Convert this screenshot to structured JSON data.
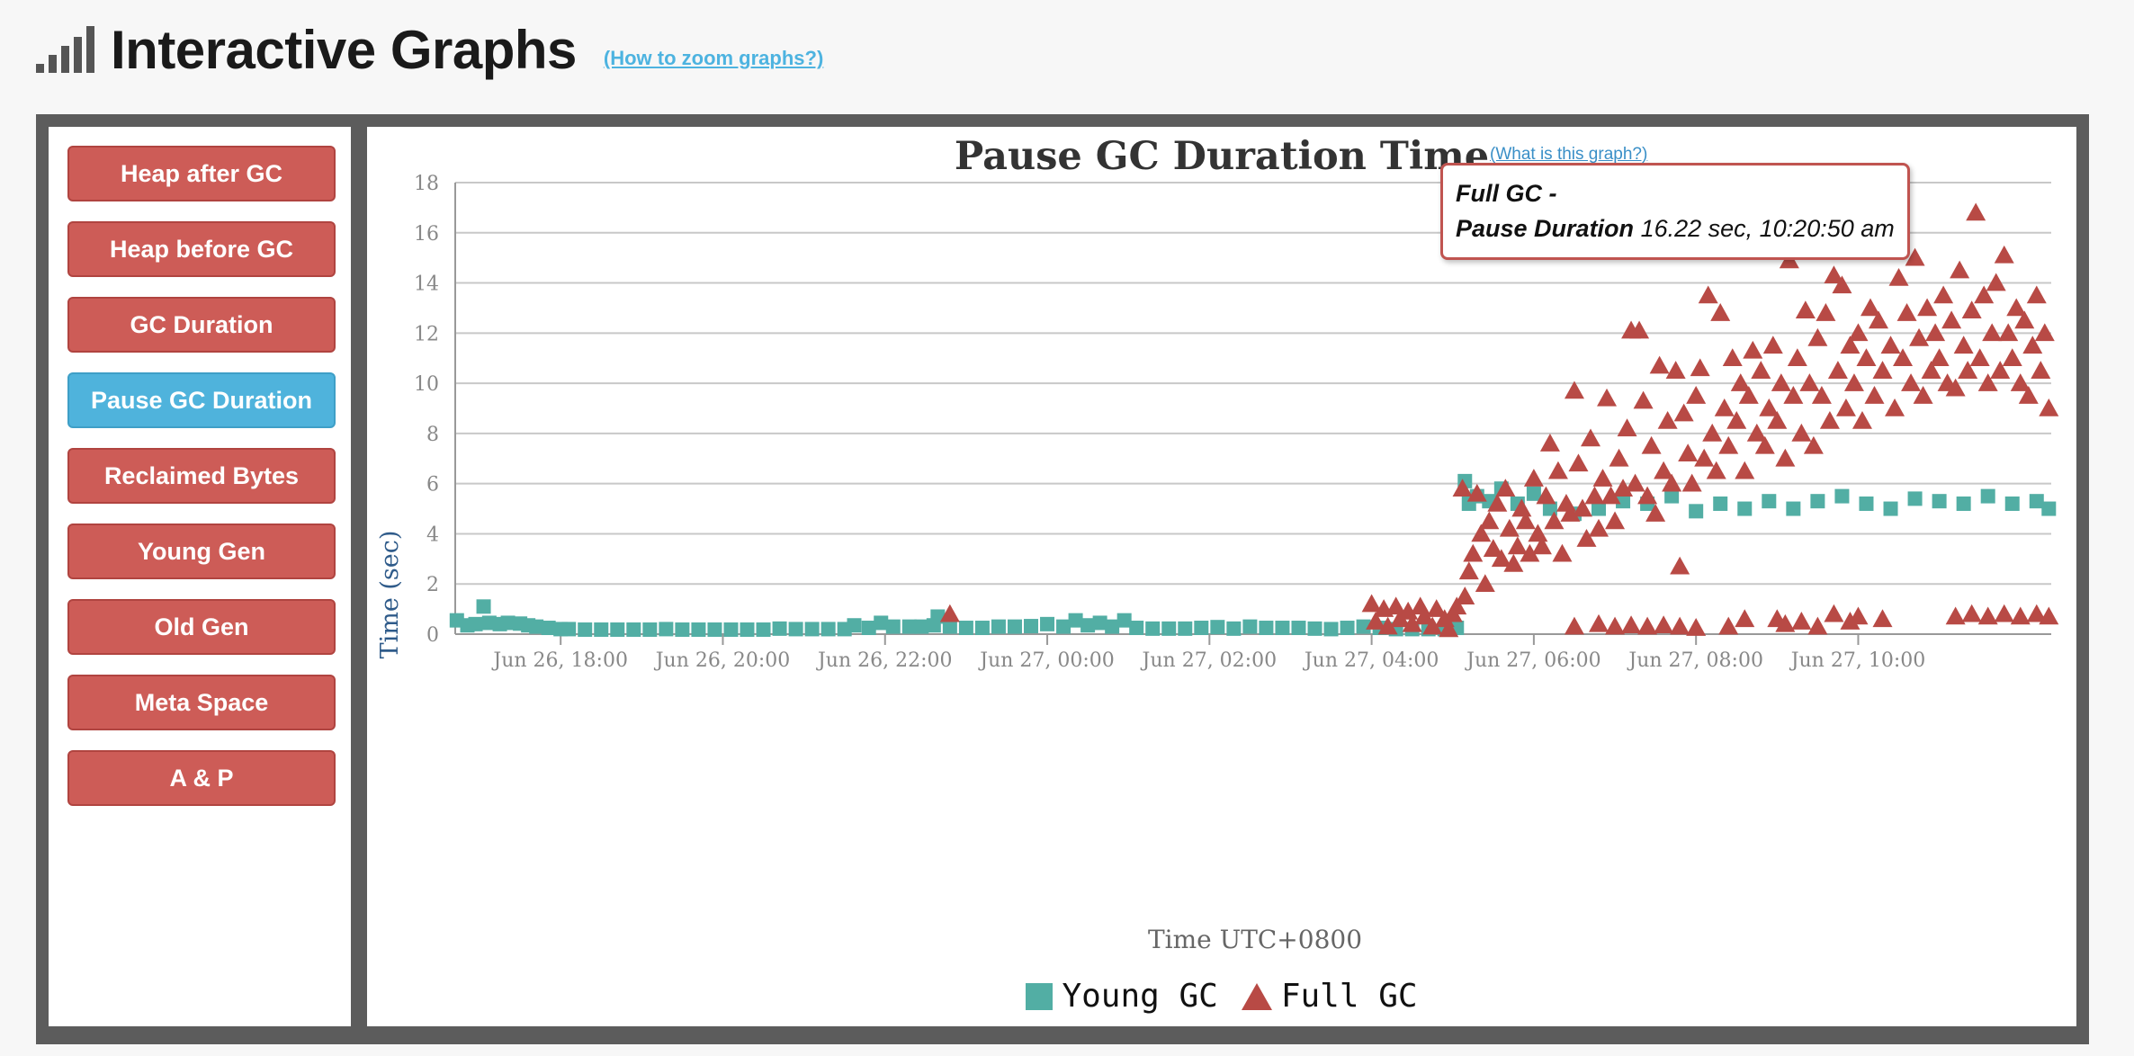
{
  "header": {
    "title": "Interactive Graphs",
    "zoom_link": "(How to zoom graphs?)"
  },
  "nav": [
    {
      "label": "Heap after GC",
      "active": false
    },
    {
      "label": "Heap before GC",
      "active": false
    },
    {
      "label": "GC Duration",
      "active": false
    },
    {
      "label": "Pause GC Duration",
      "active": true
    },
    {
      "label": "Reclaimed Bytes",
      "active": false
    },
    {
      "label": "Young Gen",
      "active": false
    },
    {
      "label": "Old Gen",
      "active": false
    },
    {
      "label": "Meta Space",
      "active": false
    },
    {
      "label": "A & P",
      "active": false
    }
  ],
  "colors": {
    "young": "#52aea4",
    "full": "#b84a45",
    "active_nav": "#4fb3dc",
    "nav": "#cd5c57"
  },
  "tooltip": {
    "title": "Full GC -",
    "label": "Pause Duration",
    "value": "16.22 sec, 10:20:50 am"
  },
  "chart_data": {
    "type": "scatter",
    "title": "Pause GC Duration Time",
    "help_link": "(What is this graph?)",
    "xlabel": "Time UTC+0800",
    "ylabel": "Time (sec)",
    "xlim": [
      16.7,
      12.38
    ],
    "xlim_hours": [
      16.7,
      36.38
    ],
    "ylim": [
      0,
      18
    ],
    "yticks": [
      0,
      2,
      4,
      6,
      8,
      10,
      12,
      14,
      16,
      18
    ],
    "xticks": [
      {
        "hour": 18,
        "label": "Jun 26, 18:00"
      },
      {
        "hour": 20,
        "label": "Jun 26, 20:00"
      },
      {
        "hour": 22,
        "label": "Jun 26, 22:00"
      },
      {
        "hour": 24,
        "label": "Jun 27, 00:00"
      },
      {
        "hour": 26,
        "label": "Jun 27, 02:00"
      },
      {
        "hour": 28,
        "label": "Jun 27, 04:00"
      },
      {
        "hour": 30,
        "label": "Jun 27, 06:00"
      },
      {
        "hour": 32,
        "label": "Jun 27, 08:00"
      },
      {
        "hour": 34,
        "label": "Jun 27, 10:00"
      }
    ],
    "grid": true,
    "legend_position": "bottom",
    "series": [
      {
        "name": "Young GC",
        "marker": "square",
        "points": [
          [
            16.72,
            0.55
          ],
          [
            16.85,
            0.35
          ],
          [
            16.95,
            0.4
          ],
          [
            17.05,
            1.1
          ],
          [
            17.12,
            0.45
          ],
          [
            17.25,
            0.4
          ],
          [
            17.35,
            0.45
          ],
          [
            17.5,
            0.42
          ],
          [
            17.6,
            0.35
          ],
          [
            17.7,
            0.3
          ],
          [
            17.85,
            0.25
          ],
          [
            18.0,
            0.2
          ],
          [
            18.1,
            0.2
          ],
          [
            18.3,
            0.18
          ],
          [
            18.5,
            0.18
          ],
          [
            18.7,
            0.18
          ],
          [
            18.9,
            0.18
          ],
          [
            19.1,
            0.18
          ],
          [
            19.3,
            0.2
          ],
          [
            19.5,
            0.18
          ],
          [
            19.7,
            0.18
          ],
          [
            19.9,
            0.18
          ],
          [
            20.1,
            0.18
          ],
          [
            20.3,
            0.18
          ],
          [
            20.5,
            0.18
          ],
          [
            20.7,
            0.22
          ],
          [
            20.9,
            0.2
          ],
          [
            21.1,
            0.2
          ],
          [
            21.3,
            0.2
          ],
          [
            21.5,
            0.2
          ],
          [
            21.62,
            0.35
          ],
          [
            21.8,
            0.25
          ],
          [
            21.95,
            0.45
          ],
          [
            22.1,
            0.3
          ],
          [
            22.3,
            0.3
          ],
          [
            22.45,
            0.3
          ],
          [
            22.6,
            0.35
          ],
          [
            22.65,
            0.7
          ],
          [
            22.8,
            0.3
          ],
          [
            23.0,
            0.25
          ],
          [
            23.2,
            0.25
          ],
          [
            23.4,
            0.3
          ],
          [
            23.6,
            0.3
          ],
          [
            23.8,
            0.32
          ],
          [
            24.0,
            0.4
          ],
          [
            24.2,
            0.3
          ],
          [
            24.35,
            0.55
          ],
          [
            24.5,
            0.35
          ],
          [
            24.65,
            0.45
          ],
          [
            24.8,
            0.3
          ],
          [
            24.95,
            0.55
          ],
          [
            25.1,
            0.25
          ],
          [
            25.3,
            0.22
          ],
          [
            25.5,
            0.22
          ],
          [
            25.7,
            0.22
          ],
          [
            25.9,
            0.25
          ],
          [
            26.1,
            0.28
          ],
          [
            26.3,
            0.22
          ],
          [
            26.5,
            0.3
          ],
          [
            26.7,
            0.25
          ],
          [
            26.9,
            0.25
          ],
          [
            27.1,
            0.25
          ],
          [
            27.3,
            0.22
          ],
          [
            27.5,
            0.2
          ],
          [
            27.7,
            0.25
          ],
          [
            27.9,
            0.3
          ],
          [
            28.1,
            0.25
          ],
          [
            28.3,
            0.2
          ],
          [
            28.5,
            0.2
          ],
          [
            28.7,
            0.2
          ],
          [
            28.9,
            0.2
          ],
          [
            29.05,
            0.25
          ],
          [
            29.15,
            6.1
          ],
          [
            29.2,
            5.2
          ],
          [
            29.3,
            5.5
          ],
          [
            29.45,
            5.3
          ],
          [
            29.6,
            5.8
          ],
          [
            29.8,
            5.2
          ],
          [
            30.0,
            5.6
          ],
          [
            30.2,
            5.0
          ],
          [
            30.5,
            4.8
          ],
          [
            30.8,
            5.0
          ],
          [
            31.1,
            5.3
          ],
          [
            31.4,
            5.2
          ],
          [
            31.7,
            5.5
          ],
          [
            32.0,
            4.9
          ],
          [
            32.3,
            5.2
          ],
          [
            32.6,
            5.0
          ],
          [
            32.9,
            5.3
          ],
          [
            33.2,
            5.0
          ],
          [
            33.5,
            5.3
          ],
          [
            33.8,
            5.5
          ],
          [
            34.1,
            5.2
          ],
          [
            34.4,
            5.0
          ],
          [
            34.7,
            5.4
          ],
          [
            35.0,
            5.3
          ],
          [
            35.3,
            5.2
          ],
          [
            35.6,
            5.5
          ],
          [
            35.9,
            5.2
          ],
          [
            36.2,
            5.3
          ],
          [
            36.35,
            5.0
          ]
        ]
      },
      {
        "name": "Full GC",
        "marker": "triangle",
        "points": [
          [
            22.8,
            0.8
          ],
          [
            28.0,
            1.2
          ],
          [
            28.05,
            0.5
          ],
          [
            28.15,
            1.0
          ],
          [
            28.2,
            0.3
          ],
          [
            28.3,
            1.1
          ],
          [
            28.35,
            0.6
          ],
          [
            28.45,
            0.9
          ],
          [
            28.5,
            0.4
          ],
          [
            28.6,
            1.1
          ],
          [
            28.65,
            0.7
          ],
          [
            28.75,
            0.3
          ],
          [
            28.8,
            1.0
          ],
          [
            28.9,
            0.6
          ],
          [
            28.95,
            0.2
          ],
          [
            29.0,
            0.8
          ],
          [
            29.05,
            1.1
          ],
          [
            29.12,
            5.8
          ],
          [
            29.15,
            1.5
          ],
          [
            29.2,
            2.5
          ],
          [
            29.25,
            3.2
          ],
          [
            29.3,
            5.6
          ],
          [
            29.35,
            4.0
          ],
          [
            29.4,
            2.0
          ],
          [
            29.45,
            4.5
          ],
          [
            29.5,
            3.4
          ],
          [
            29.55,
            5.2
          ],
          [
            29.6,
            3.0
          ],
          [
            29.65,
            5.8
          ],
          [
            29.7,
            4.2
          ],
          [
            29.75,
            2.8
          ],
          [
            29.8,
            3.5
          ],
          [
            29.85,
            5.0
          ],
          [
            29.9,
            4.5
          ],
          [
            29.95,
            3.2
          ],
          [
            30.0,
            6.2
          ],
          [
            30.05,
            4.0
          ],
          [
            30.1,
            3.5
          ],
          [
            30.15,
            5.5
          ],
          [
            30.2,
            7.6
          ],
          [
            30.25,
            4.5
          ],
          [
            30.3,
            6.5
          ],
          [
            30.35,
            3.2
          ],
          [
            30.4,
            5.2
          ],
          [
            30.45,
            4.8
          ],
          [
            30.5,
            9.7
          ],
          [
            30.55,
            6.8
          ],
          [
            30.6,
            5.0
          ],
          [
            30.65,
            3.8
          ],
          [
            30.7,
            7.8
          ],
          [
            30.75,
            5.5
          ],
          [
            30.8,
            4.2
          ],
          [
            30.85,
            6.2
          ],
          [
            30.9,
            9.4
          ],
          [
            30.95,
            5.5
          ],
          [
            31.0,
            4.5
          ],
          [
            31.05,
            7.0
          ],
          [
            31.1,
            5.8
          ],
          [
            31.15,
            8.2
          ],
          [
            31.2,
            12.1
          ],
          [
            31.3,
            12.1
          ],
          [
            31.25,
            6.0
          ],
          [
            31.35,
            9.3
          ],
          [
            31.4,
            5.5
          ],
          [
            31.45,
            7.5
          ],
          [
            31.5,
            4.8
          ],
          [
            31.55,
            10.7
          ],
          [
            31.6,
            6.5
          ],
          [
            31.65,
            8.5
          ],
          [
            31.7,
            6.0
          ],
          [
            31.75,
            10.5
          ],
          [
            31.8,
            2.7
          ],
          [
            31.85,
            8.8
          ],
          [
            31.9,
            7.2
          ],
          [
            31.95,
            6.0
          ],
          [
            32.0,
            9.5
          ],
          [
            32.05,
            10.6
          ],
          [
            32.1,
            7.0
          ],
          [
            32.15,
            13.5
          ],
          [
            32.2,
            8.0
          ],
          [
            32.25,
            6.5
          ],
          [
            32.3,
            12.8
          ],
          [
            32.35,
            9.0
          ],
          [
            32.4,
            7.5
          ],
          [
            32.45,
            11.0
          ],
          [
            32.5,
            8.5
          ],
          [
            32.55,
            10.0
          ],
          [
            32.6,
            6.5
          ],
          [
            32.65,
            9.5
          ],
          [
            32.7,
            11.3
          ],
          [
            32.75,
            8.0
          ],
          [
            32.8,
            10.5
          ],
          [
            32.85,
            7.5
          ],
          [
            32.9,
            9.0
          ],
          [
            32.95,
            11.5
          ],
          [
            33.0,
            8.5
          ],
          [
            33.05,
            10.0
          ],
          [
            33.1,
            7.0
          ],
          [
            33.15,
            14.9
          ],
          [
            33.2,
            9.5
          ],
          [
            33.25,
            11.0
          ],
          [
            33.3,
            8.0
          ],
          [
            33.35,
            12.9
          ],
          [
            33.4,
            10.0
          ],
          [
            33.45,
            7.5
          ],
          [
            33.5,
            11.8
          ],
          [
            33.55,
            9.5
          ],
          [
            33.6,
            12.8
          ],
          [
            33.65,
            8.5
          ],
          [
            33.7,
            14.3
          ],
          [
            33.75,
            10.5
          ],
          [
            33.8,
            13.9
          ],
          [
            33.85,
            9.0
          ],
          [
            33.9,
            11.5
          ],
          [
            33.95,
            10.0
          ],
          [
            34.0,
            12.0
          ],
          [
            34.05,
            8.5
          ],
          [
            34.1,
            11.0
          ],
          [
            34.15,
            13.0
          ],
          [
            34.2,
            9.5
          ],
          [
            34.25,
            12.5
          ],
          [
            34.3,
            10.5
          ],
          [
            34.35,
            16.22
          ],
          [
            34.4,
            11.5
          ],
          [
            34.45,
            9.0
          ],
          [
            34.5,
            14.2
          ],
          [
            34.55,
            11.0
          ],
          [
            34.6,
            12.8
          ],
          [
            34.65,
            10.0
          ],
          [
            34.7,
            15.0
          ],
          [
            34.75,
            11.8
          ],
          [
            34.8,
            9.5
          ],
          [
            34.85,
            13.0
          ],
          [
            34.9,
            10.5
          ],
          [
            34.95,
            12.0
          ],
          [
            35.0,
            11.0
          ],
          [
            35.05,
            13.5
          ],
          [
            35.1,
            10.0
          ],
          [
            35.15,
            12.5
          ],
          [
            35.2,
            9.8
          ],
          [
            35.25,
            14.5
          ],
          [
            35.3,
            11.5
          ],
          [
            35.35,
            10.5
          ],
          [
            35.4,
            12.9
          ],
          [
            35.45,
            16.8
          ],
          [
            35.5,
            11.0
          ],
          [
            35.55,
            13.5
          ],
          [
            35.6,
            10.0
          ],
          [
            35.65,
            12.0
          ],
          [
            35.7,
            14.0
          ],
          [
            35.75,
            10.5
          ],
          [
            35.8,
            15.1
          ],
          [
            35.85,
            12.0
          ],
          [
            35.9,
            11.0
          ],
          [
            35.95,
            13.0
          ],
          [
            36.0,
            10.0
          ],
          [
            36.05,
            12.5
          ],
          [
            36.1,
            9.5
          ],
          [
            36.15,
            11.5
          ],
          [
            36.2,
            13.5
          ],
          [
            36.25,
            10.5
          ],
          [
            36.3,
            12.0
          ],
          [
            36.35,
            9.0
          ],
          [
            30.5,
            0.3
          ],
          [
            30.8,
            0.4
          ],
          [
            31.0,
            0.3
          ],
          [
            31.2,
            0.35
          ],
          [
            31.4,
            0.3
          ],
          [
            31.6,
            0.35
          ],
          [
            31.8,
            0.3
          ],
          [
            32.0,
            0.25
          ],
          [
            32.4,
            0.3
          ],
          [
            32.6,
            0.6
          ],
          [
            33.0,
            0.6
          ],
          [
            33.1,
            0.4
          ],
          [
            33.3,
            0.5
          ],
          [
            33.5,
            0.3
          ],
          [
            33.7,
            0.8
          ],
          [
            33.9,
            0.5
          ],
          [
            34.0,
            0.7
          ],
          [
            34.3,
            0.6
          ],
          [
            35.2,
            0.7
          ],
          [
            35.4,
            0.8
          ],
          [
            35.6,
            0.7
          ],
          [
            35.8,
            0.8
          ],
          [
            36.0,
            0.7
          ],
          [
            36.2,
            0.8
          ],
          [
            36.35,
            0.7
          ]
        ]
      }
    ]
  }
}
